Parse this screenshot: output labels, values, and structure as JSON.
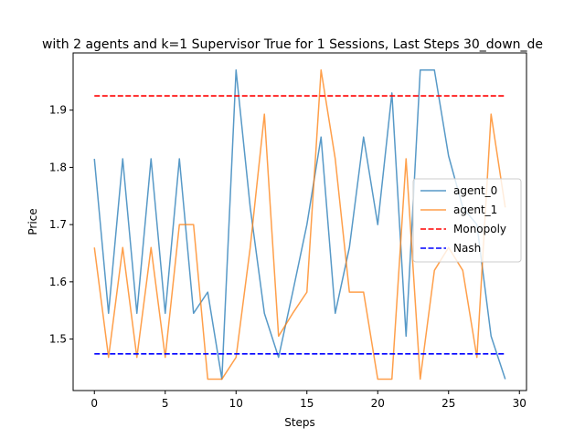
{
  "chart_data": {
    "type": "line",
    "title": "with 2 agents and k=1 Supervisor True for 1 Sessions, Last Steps 30_down_de",
    "xlabel": "Steps",
    "ylabel": "Price",
    "xlim": [
      -1.5,
      30.5
    ],
    "ylim": [
      1.41,
      2.0
    ],
    "x_ticks": [
      0,
      5,
      10,
      15,
      20,
      25,
      30
    ],
    "y_ticks": [
      1.5,
      1.6,
      1.7,
      1.8,
      1.9
    ],
    "y_tick_labels": [
      "1.5",
      "1.6",
      "1.7",
      "1.8",
      "1.9"
    ],
    "x_tick_labels": [
      "0",
      "5",
      "10",
      "15",
      "20",
      "25",
      "30"
    ],
    "grid": false,
    "legend_position": "center-right",
    "x": [
      0,
      1,
      2,
      3,
      4,
      5,
      6,
      7,
      8,
      9,
      10,
      11,
      12,
      13,
      14,
      15,
      16,
      17,
      18,
      19,
      20,
      21,
      22,
      23,
      24,
      25,
      26,
      27,
      28,
      29
    ],
    "series": [
      {
        "name": "agent_0",
        "color": "#1f77b4",
        "style": "solid",
        "values": [
          1.815,
          1.545,
          1.815,
          1.545,
          1.815,
          1.545,
          1.815,
          1.545,
          1.582,
          1.43,
          1.97,
          1.73,
          1.545,
          1.468,
          1.582,
          1.7,
          1.853,
          1.545,
          1.66,
          1.853,
          1.7,
          1.93,
          1.505,
          1.97,
          1.97,
          1.82,
          1.73,
          1.7,
          1.505,
          1.43
        ]
      },
      {
        "name": "agent_1",
        "color": "#ff7f0e",
        "style": "solid",
        "values": [
          1.66,
          1.468,
          1.66,
          1.468,
          1.66,
          1.468,
          1.7,
          1.7,
          1.43,
          1.43,
          1.468,
          1.66,
          1.893,
          1.505,
          1.545,
          1.582,
          1.97,
          1.815,
          1.582,
          1.582,
          1.43,
          1.43,
          1.815,
          1.43,
          1.62,
          1.66,
          1.62,
          1.468,
          1.893,
          1.73
        ]
      },
      {
        "name": "Monopoly",
        "color": "#ff0000",
        "style": "dashed",
        "values": [
          1.925,
          1.925,
          1.925,
          1.925,
          1.925,
          1.925,
          1.925,
          1.925,
          1.925,
          1.925,
          1.925,
          1.925,
          1.925,
          1.925,
          1.925,
          1.925,
          1.925,
          1.925,
          1.925,
          1.925,
          1.925,
          1.925,
          1.925,
          1.925,
          1.925,
          1.925,
          1.925,
          1.925,
          1.925,
          1.925
        ]
      },
      {
        "name": "Nash",
        "color": "#0000ff",
        "style": "dashed",
        "values": [
          1.474,
          1.474,
          1.474,
          1.474,
          1.474,
          1.474,
          1.474,
          1.474,
          1.474,
          1.474,
          1.474,
          1.474,
          1.474,
          1.474,
          1.474,
          1.474,
          1.474,
          1.474,
          1.474,
          1.474,
          1.474,
          1.474,
          1.474,
          1.474,
          1.474,
          1.474,
          1.474,
          1.474,
          1.474,
          1.474
        ]
      }
    ]
  }
}
